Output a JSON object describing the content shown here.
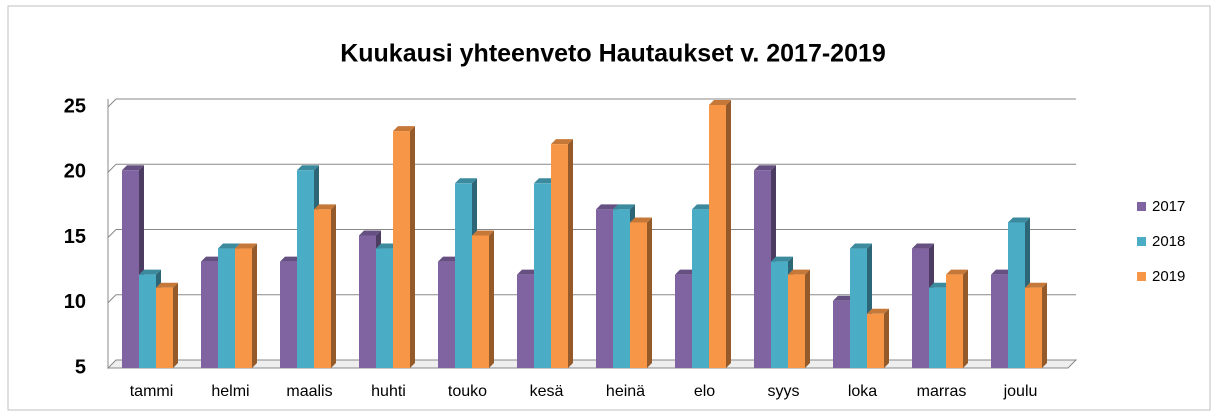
{
  "chart_data": {
    "type": "bar3d",
    "title": "Kuukausi yhteenveto Hautaukset v. 2017-2019",
    "categories": [
      "tammi",
      "helmi",
      "maalis",
      "huhti",
      "touko",
      "kesä",
      "heinä",
      "elo",
      "syys",
      "loka",
      "marras",
      "joulu"
    ],
    "series": [
      {
        "name": "2017",
        "color": "#8064a2",
        "values": [
          20,
          13,
          13,
          15,
          13,
          12,
          17,
          12,
          20,
          10,
          14,
          12
        ]
      },
      {
        "name": "2018",
        "color": "#4bacc6",
        "values": [
          12,
          14,
          20,
          14,
          19,
          19,
          17,
          17,
          13,
          14,
          11,
          16
        ]
      },
      {
        "name": "2019",
        "color": "#f79646",
        "values": [
          11,
          14,
          17,
          23,
          15,
          22,
          16,
          25,
          12,
          9,
          12,
          11
        ]
      }
    ],
    "ylim": [
      5,
      25
    ],
    "yticks": [
      5,
      10,
      15,
      20,
      25
    ],
    "grid": true,
    "legend": "right"
  }
}
